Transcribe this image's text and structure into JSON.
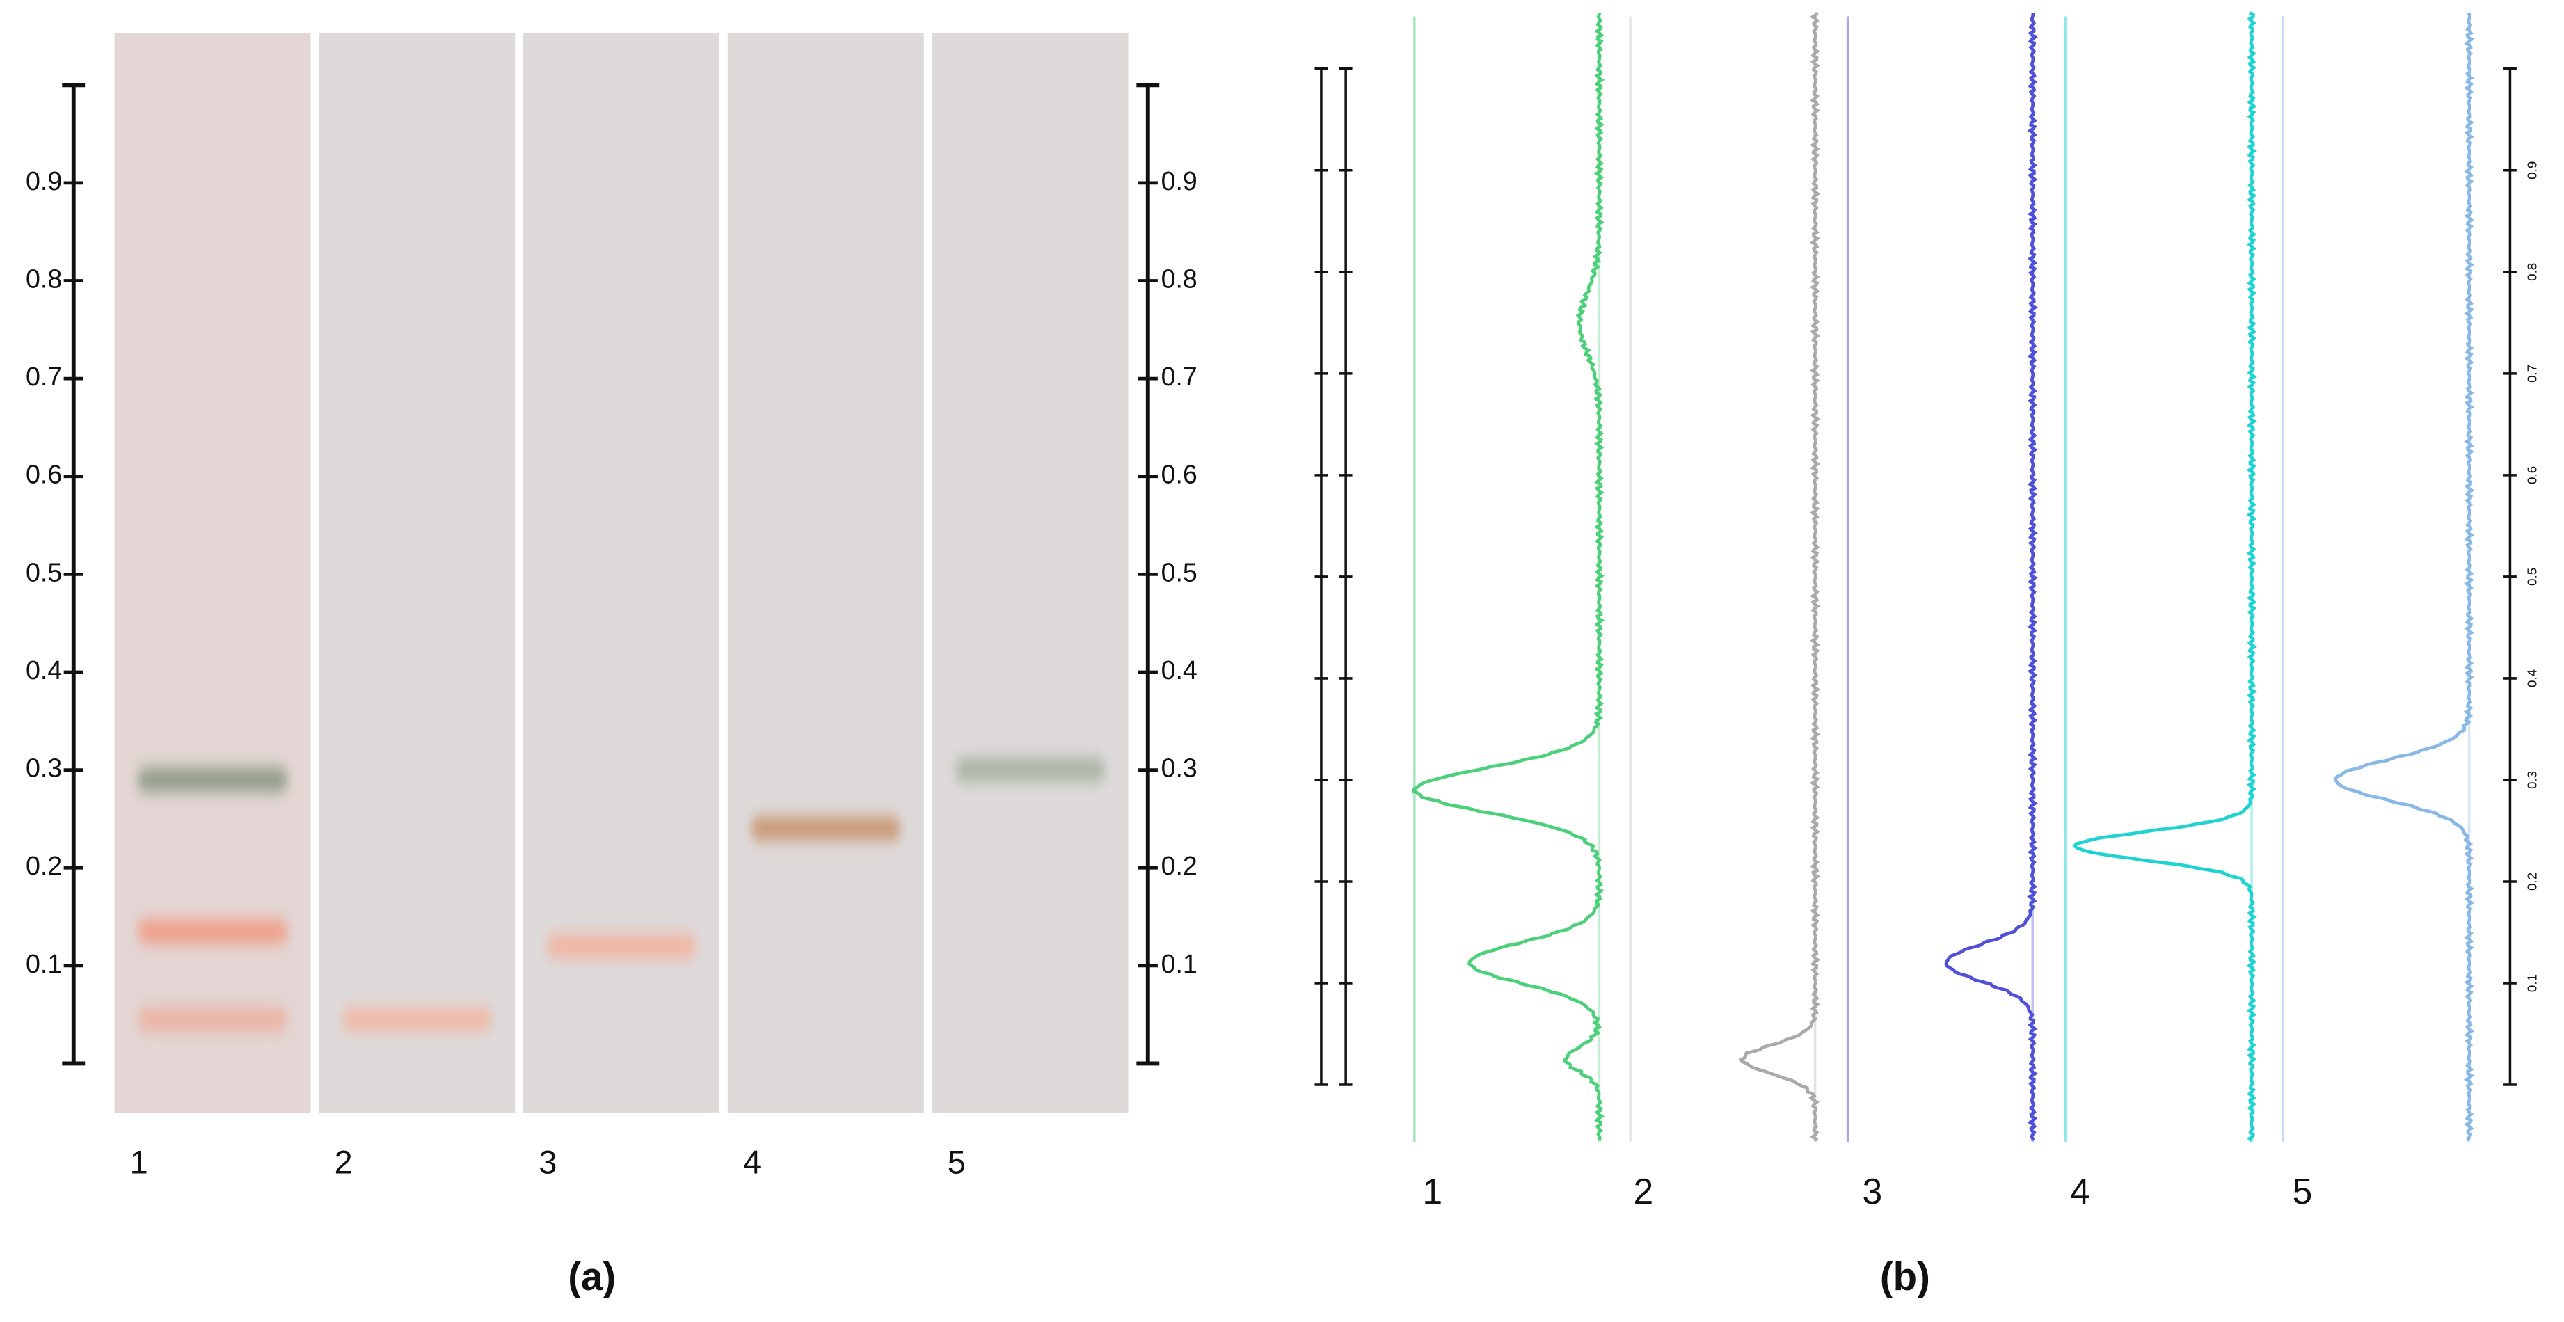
{
  "panel_a": {
    "label": "(a)",
    "ylim": [
      0,
      1
    ],
    "yticks": [
      0.1,
      0.2,
      0.3,
      0.4,
      0.5,
      0.6,
      0.7,
      0.8,
      0.9
    ],
    "lanes": [
      {
        "name": "1",
        "background": "#e3d6d4",
        "bands": [
          {
            "rf": 0.29,
            "color": "#8e9a86"
          },
          {
            "rf": 0.135,
            "color": "#f09c86"
          },
          {
            "rf": 0.045,
            "color": "#ebb2a2"
          }
        ]
      },
      {
        "name": "2",
        "background": "#dedada",
        "bands": [
          {
            "rf": 0.045,
            "color": "#f2b8a6"
          }
        ]
      },
      {
        "name": "3",
        "background": "#dedada",
        "bands": [
          {
            "rf": 0.12,
            "color": "#f2b4a0"
          }
        ]
      },
      {
        "name": "4",
        "background": "#dedada",
        "bands": [
          {
            "rf": 0.24,
            "color": "#c89672"
          }
        ]
      },
      {
        "name": "5",
        "background": "#dedada",
        "bands": [
          {
            "rf": 0.3,
            "color": "#a8b3a2"
          }
        ]
      }
    ]
  },
  "panel_b": {
    "label": "(b)",
    "ylim": [
      0,
      1
    ],
    "yticks": [
      0.1,
      0.2,
      0.3,
      0.4,
      0.5,
      0.6,
      0.7,
      0.8,
      0.9
    ],
    "lanes": [
      {
        "name": "1",
        "color": "#4cd07a",
        "peaks": [
          {
            "rf": 0.29,
            "height": 0.94,
            "width": 0.022
          },
          {
            "rf": 0.12,
            "height": 0.66,
            "width": 0.02
          },
          {
            "rf": 0.025,
            "height": 0.17,
            "width": 0.012
          },
          {
            "rf": 0.75,
            "height": 0.1,
            "width": 0.03
          }
        ]
      },
      {
        "name": "2",
        "color": "#aaaaaa",
        "peaks": [
          {
            "rf": 0.025,
            "height": 0.37,
            "width": 0.014
          }
        ]
      },
      {
        "name": "3",
        "color": "#5050d8",
        "peaks": [
          {
            "rf": 0.12,
            "height": 0.44,
            "width": 0.018
          }
        ]
      },
      {
        "name": "4",
        "color": "#1fd3d3",
        "peaks": [
          {
            "rf": 0.235,
            "height": 0.9,
            "width": 0.014
          }
        ]
      },
      {
        "name": "5",
        "color": "#8ab8e6",
        "peaks": [
          {
            "rf": 0.3,
            "height": 0.68,
            "width": 0.02
          }
        ]
      }
    ]
  }
}
